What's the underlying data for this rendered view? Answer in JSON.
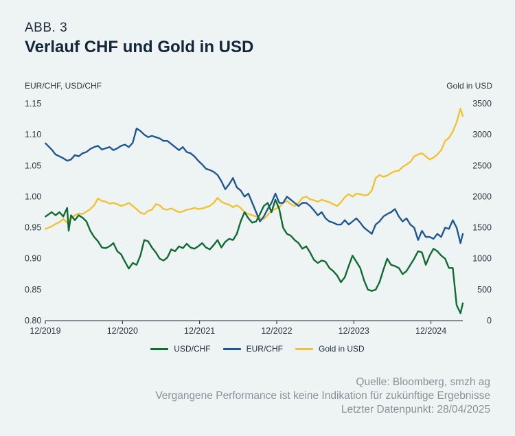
{
  "header": {
    "figure_label": "ABB. 3",
    "title": "Verlauf CHF und Gold in USD"
  },
  "colors": {
    "usdchf": "#0f6b2f",
    "eurchf": "#1f5794",
    "gold": "#f2c232",
    "background": "#eef3f4"
  },
  "chart_data": {
    "type": "line",
    "title": "Verlauf CHF und Gold in USD",
    "y_left_label": "EUR/CHF, USD/CHF",
    "y_right_label": "Gold in USD",
    "y_left_lim": [
      0.8,
      1.15
    ],
    "y_right_lim": [
      0,
      3500
    ],
    "y_left_ticks": [
      "1.15",
      "1.10",
      "1.05",
      "1.00",
      "0.95",
      "0.90",
      "0.85",
      "0.80"
    ],
    "y_right_ticks": [
      "3500",
      "3000",
      "2500",
      "2000",
      "1500",
      "1000",
      "500",
      "0"
    ],
    "x_tick_labels": [
      "12/2019",
      "12/2020",
      "12/2021",
      "12/2022",
      "12/2023",
      "12/2024"
    ],
    "x_start": 2019.917,
    "x_end": 2025.33,
    "grid": false,
    "legend_position": "bottom",
    "series": [
      {
        "name": "USD/CHF",
        "axis": "left",
        "x": [
          2019.92,
          2020.0,
          2020.05,
          2020.1,
          2020.15,
          2020.2,
          2020.22,
          2020.25,
          2020.3,
          2020.35,
          2020.4,
          2020.45,
          2020.5,
          2020.55,
          2020.6,
          2020.65,
          2020.7,
          2020.75,
          2020.8,
          2020.85,
          2020.9,
          2020.95,
          2021.0,
          2021.05,
          2021.1,
          2021.15,
          2021.2,
          2021.25,
          2021.3,
          2021.35,
          2021.4,
          2021.45,
          2021.5,
          2021.55,
          2021.6,
          2021.65,
          2021.7,
          2021.75,
          2021.8,
          2021.85,
          2021.9,
          2021.95,
          2022.0,
          2022.05,
          2022.1,
          2022.15,
          2022.2,
          2022.25,
          2022.3,
          2022.35,
          2022.4,
          2022.45,
          2022.5,
          2022.55,
          2022.6,
          2022.65,
          2022.7,
          2022.75,
          2022.8,
          2022.85,
          2022.9,
          2022.95,
          2023.0,
          2023.05,
          2023.1,
          2023.15,
          2023.2,
          2023.25,
          2023.3,
          2023.35,
          2023.4,
          2023.45,
          2023.5,
          2023.55,
          2023.6,
          2023.65,
          2023.7,
          2023.75,
          2023.8,
          2023.85,
          2023.9,
          2023.95,
          2024.0,
          2024.05,
          2024.1,
          2024.15,
          2024.2,
          2024.25,
          2024.3,
          2024.35,
          2024.4,
          2024.45,
          2024.5,
          2024.55,
          2024.6,
          2024.65,
          2024.7,
          2024.75,
          2024.8,
          2024.85,
          2024.9,
          2024.95,
          2025.0,
          2025.05,
          2025.1,
          2025.15,
          2025.2,
          2025.25,
          2025.3,
          2025.33
        ],
        "values": [
          0.968,
          0.975,
          0.97,
          0.975,
          0.968,
          0.982,
          0.945,
          0.97,
          0.962,
          0.97,
          0.966,
          0.96,
          0.945,
          0.935,
          0.928,
          0.918,
          0.917,
          0.92,
          0.925,
          0.912,
          0.907,
          0.895,
          0.884,
          0.893,
          0.89,
          0.905,
          0.93,
          0.928,
          0.918,
          0.91,
          0.9,
          0.897,
          0.902,
          0.915,
          0.912,
          0.92,
          0.917,
          0.924,
          0.918,
          0.916,
          0.92,
          0.925,
          0.918,
          0.915,
          0.922,
          0.93,
          0.918,
          0.927,
          0.932,
          0.93,
          0.94,
          0.96,
          0.975,
          0.965,
          0.958,
          0.96,
          0.972,
          0.985,
          0.99,
          0.975,
          0.995,
          0.98,
          0.95,
          0.94,
          0.937,
          0.93,
          0.925,
          0.916,
          0.92,
          0.91,
          0.898,
          0.893,
          0.897,
          0.895,
          0.885,
          0.88,
          0.873,
          0.862,
          0.87,
          0.888,
          0.905,
          0.895,
          0.885,
          0.865,
          0.85,
          0.848,
          0.85,
          0.862,
          0.882,
          0.9,
          0.89,
          0.888,
          0.885,
          0.875,
          0.88,
          0.89,
          0.9,
          0.912,
          0.91,
          0.89,
          0.905,
          0.916,
          0.912,
          0.905,
          0.9,
          0.885,
          0.885,
          0.825,
          0.812,
          0.828
        ],
        "color": "#0f6b2f"
      },
      {
        "name": "EUR/CHF",
        "axis": "left",
        "x": [
          2019.92,
          2020.0,
          2020.05,
          2020.1,
          2020.15,
          2020.2,
          2020.25,
          2020.3,
          2020.35,
          2020.4,
          2020.45,
          2020.5,
          2020.55,
          2020.6,
          2020.65,
          2020.7,
          2020.75,
          2020.8,
          2020.85,
          2020.9,
          2020.95,
          2021.0,
          2021.05,
          2021.1,
          2021.15,
          2021.2,
          2021.25,
          2021.3,
          2021.35,
          2021.4,
          2021.45,
          2021.5,
          2021.55,
          2021.6,
          2021.65,
          2021.7,
          2021.75,
          2021.8,
          2021.85,
          2021.9,
          2021.95,
          2022.0,
          2022.05,
          2022.1,
          2022.15,
          2022.2,
          2022.25,
          2022.3,
          2022.35,
          2022.4,
          2022.45,
          2022.5,
          2022.55,
          2022.6,
          2022.65,
          2022.7,
          2022.75,
          2022.8,
          2022.85,
          2022.9,
          2022.95,
          2023.0,
          2023.05,
          2023.1,
          2023.15,
          2023.2,
          2023.25,
          2023.3,
          2023.35,
          2023.4,
          2023.45,
          2023.5,
          2023.55,
          2023.6,
          2023.65,
          2023.7,
          2023.75,
          2023.8,
          2023.85,
          2023.9,
          2023.95,
          2024.0,
          2024.05,
          2024.1,
          2024.15,
          2024.2,
          2024.25,
          2024.3,
          2024.35,
          2024.4,
          2024.45,
          2024.5,
          2024.55,
          2024.6,
          2024.65,
          2024.7,
          2024.75,
          2024.8,
          2024.85,
          2024.9,
          2024.95,
          2025.0,
          2025.05,
          2025.1,
          2025.15,
          2025.2,
          2025.25,
          2025.3,
          2025.33
        ],
        "values": [
          1.086,
          1.076,
          1.068,
          1.065,
          1.062,
          1.058,
          1.06,
          1.067,
          1.065,
          1.07,
          1.072,
          1.077,
          1.08,
          1.082,
          1.076,
          1.078,
          1.08,
          1.075,
          1.078,
          1.082,
          1.084,
          1.08,
          1.087,
          1.11,
          1.106,
          1.1,
          1.096,
          1.098,
          1.096,
          1.094,
          1.09,
          1.09,
          1.085,
          1.08,
          1.075,
          1.08,
          1.072,
          1.07,
          1.065,
          1.058,
          1.052,
          1.045,
          1.043,
          1.04,
          1.035,
          1.025,
          1.012,
          1.02,
          1.03,
          1.015,
          1.01,
          1.0,
          1.005,
          0.99,
          0.975,
          0.96,
          0.968,
          0.98,
          0.99,
          1.005,
          0.99,
          0.99,
          1.0,
          0.995,
          0.99,
          0.985,
          0.99,
          0.99,
          0.985,
          0.978,
          0.97,
          0.975,
          0.965,
          0.96,
          0.958,
          0.955,
          0.955,
          0.962,
          0.955,
          0.96,
          0.965,
          0.958,
          0.95,
          0.945,
          0.94,
          0.955,
          0.96,
          0.968,
          0.972,
          0.975,
          0.98,
          0.968,
          0.96,
          0.965,
          0.955,
          0.95,
          0.93,
          0.945,
          0.935,
          0.935,
          0.932,
          0.94,
          0.935,
          0.95,
          0.948,
          0.962,
          0.95,
          0.925,
          0.94
        ],
        "color": "#1f5794"
      },
      {
        "name": "Gold in USD",
        "axis": "right",
        "x": [
          2019.92,
          2020.0,
          2020.05,
          2020.1,
          2020.15,
          2020.2,
          2020.25,
          2020.3,
          2020.35,
          2020.4,
          2020.45,
          2020.5,
          2020.55,
          2020.6,
          2020.65,
          2020.7,
          2020.75,
          2020.8,
          2020.85,
          2020.9,
          2020.95,
          2021.0,
          2021.05,
          2021.1,
          2021.15,
          2021.2,
          2021.25,
          2021.3,
          2021.35,
          2021.4,
          2021.45,
          2021.5,
          2021.55,
          2021.6,
          2021.65,
          2021.7,
          2021.75,
          2021.8,
          2021.85,
          2021.9,
          2021.95,
          2022.0,
          2022.05,
          2022.1,
          2022.15,
          2022.2,
          2022.25,
          2022.3,
          2022.35,
          2022.4,
          2022.45,
          2022.5,
          2022.55,
          2022.6,
          2022.65,
          2022.7,
          2022.75,
          2022.8,
          2022.85,
          2022.9,
          2022.95,
          2023.0,
          2023.05,
          2023.1,
          2023.15,
          2023.2,
          2023.25,
          2023.3,
          2023.35,
          2023.4,
          2023.45,
          2023.5,
          2023.55,
          2023.6,
          2023.65,
          2023.7,
          2023.75,
          2023.8,
          2023.85,
          2023.9,
          2023.95,
          2024.0,
          2024.05,
          2024.1,
          2024.15,
          2024.2,
          2024.25,
          2024.3,
          2024.35,
          2024.4,
          2024.45,
          2024.5,
          2024.55,
          2024.6,
          2024.65,
          2024.7,
          2024.75,
          2024.8,
          2024.85,
          2024.9,
          2024.95,
          2025.0,
          2025.05,
          2025.1,
          2025.15,
          2025.2,
          2025.25,
          2025.3,
          2025.33
        ],
        "values": [
          1480,
          1520,
          1560,
          1590,
          1640,
          1580,
          1640,
          1700,
          1730,
          1720,
          1760,
          1800,
          1860,
          1970,
          1930,
          1920,
          1890,
          1900,
          1880,
          1850,
          1870,
          1900,
          1850,
          1800,
          1740,
          1720,
          1770,
          1790,
          1880,
          1860,
          1800,
          1790,
          1810,
          1780,
          1750,
          1760,
          1790,
          1800,
          1820,
          1800,
          1810,
          1830,
          1850,
          1900,
          1980,
          1920,
          1890,
          1870,
          1830,
          1860,
          1820,
          1750,
          1720,
          1700,
          1680,
          1650,
          1640,
          1700,
          1780,
          1800,
          1830,
          1900,
          1930,
          1880,
          1850,
          1900,
          1980,
          2000,
          1960,
          1940,
          1920,
          1950,
          1930,
          1910,
          1880,
          1850,
          1910,
          1990,
          2040,
          2000,
          2050,
          2040,
          2020,
          2030,
          2100,
          2300,
          2350,
          2320,
          2340,
          2380,
          2410,
          2420,
          2480,
          2520,
          2560,
          2650,
          2680,
          2700,
          2650,
          2600,
          2630,
          2680,
          2750,
          2900,
          2950,
          3050,
          3200,
          3420,
          3300
        ],
        "color": "#f2c232"
      }
    ]
  },
  "legend": {
    "items": [
      "USD/CHF",
      "EUR/CHF",
      "Gold in USD"
    ]
  },
  "footer": {
    "source": "Quelle: Bloomberg, smzh ag",
    "disclaimer": "Vergangene Performance ist keine Indikation für zukünftige Ergebnisse",
    "last_data": "Letzter Datenpunkt: 28/04/2025"
  }
}
